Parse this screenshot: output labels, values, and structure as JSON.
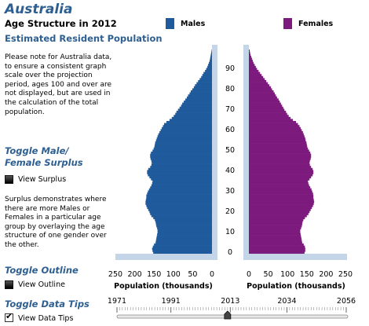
{
  "header": {
    "country": "Australia",
    "age_structure_label": "Age Structure in",
    "year": "2012",
    "subtitle": "Estimated Resident Population"
  },
  "notes": {
    "projection_note": "Please note for Australia data, to ensure a consistent graph scale over the projection period, ages 100 and over are not displayed, but are used in the calculation of the total population.",
    "surplus_note": "Surplus demonstrates where there are more Males or Females in a particular age group by overlaying the age structure of one gender over the other."
  },
  "toggles": {
    "surplus": {
      "title": "Toggle Male/ Female Surplus",
      "label": "View Surplus",
      "checked": false
    },
    "outline": {
      "title": "Toggle Outline",
      "label": "View Outline",
      "checked": false
    },
    "tips": {
      "title": "Toggle Data Tips",
      "label": "View Data Tips",
      "checked": true,
      "check_glyph": "✔"
    }
  },
  "timeline": {
    "labels": [
      "1971",
      "1991",
      "2013",
      "2034",
      "2056"
    ],
    "current_value": 2012
  },
  "colors": {
    "male": "#1f5a9c",
    "female": "#7d1a7d",
    "title": "#2d5f91",
    "axis_band": "#c5d5e8"
  },
  "chart_data": {
    "type": "bar",
    "orientation": "horizontal-population-pyramid",
    "legend": {
      "males": "Males",
      "females": "Females"
    },
    "xlabel": "Population (thousands)",
    "x_ticks_male": [
      "250",
      "200",
      "150",
      "100",
      "50",
      "0"
    ],
    "x_ticks_female": [
      "0",
      "50",
      "100",
      "150",
      "200",
      "250"
    ],
    "xlim": [
      0,
      250
    ],
    "age_ticks": [
      "0",
      "10",
      "20",
      "30",
      "40",
      "50",
      "60",
      "70",
      "80",
      "90"
    ],
    "age_range": [
      0,
      99
    ],
    "ages": [
      0,
      1,
      2,
      3,
      4,
      5,
      6,
      7,
      8,
      9,
      10,
      11,
      12,
      13,
      14,
      15,
      16,
      17,
      18,
      19,
      20,
      21,
      22,
      23,
      24,
      25,
      26,
      27,
      28,
      29,
      30,
      31,
      32,
      33,
      34,
      35,
      36,
      37,
      38,
      39,
      40,
      41,
      42,
      43,
      44,
      45,
      46,
      47,
      48,
      49,
      50,
      51,
      52,
      53,
      54,
      55,
      56,
      57,
      58,
      59,
      60,
      61,
      62,
      63,
      64,
      65,
      66,
      67,
      68,
      69,
      70,
      71,
      72,
      73,
      74,
      75,
      76,
      77,
      78,
      79,
      80,
      81,
      82,
      83,
      84,
      85,
      86,
      87,
      88,
      89,
      90,
      91,
      92,
      93,
      94,
      95,
      96,
      97,
      98,
      99
    ],
    "series": [
      {
        "name": "Males",
        "values": [
          152,
          154,
          155,
          153,
          150,
          146,
          145,
          144,
          143,
          142,
          141,
          141,
          142,
          144,
          145,
          146,
          148,
          152,
          157,
          160,
          162,
          165,
          168,
          170,
          172,
          172,
          171,
          170,
          170,
          168,
          166,
          163,
          160,
          157,
          155,
          154,
          158,
          162,
          166,
          168,
          168,
          165,
          160,
          157,
          156,
          157,
          159,
          160,
          160,
          158,
          154,
          151,
          149,
          148,
          147,
          145,
          143,
          141,
          139,
          136,
          133,
          130,
          127,
          124,
          118,
          110,
          104,
          99,
          95,
          92,
          88,
          84,
          80,
          77,
          73,
          69,
          65,
          62,
          58,
          55,
          51,
          47,
          44,
          40,
          36,
          32,
          28,
          25,
          22,
          18,
          15,
          12,
          10,
          8,
          6,
          5,
          4,
          3,
          2,
          1
        ]
      },
      {
        "name": "Females",
        "values": [
          144,
          146,
          146,
          145,
          142,
          138,
          137,
          136,
          135,
          134,
          133,
          133,
          135,
          137,
          138,
          139,
          141,
          145,
          150,
          154,
          157,
          160,
          163,
          166,
          168,
          169,
          168,
          167,
          167,
          166,
          164,
          162,
          159,
          156,
          154,
          153,
          157,
          161,
          165,
          167,
          167,
          165,
          161,
          158,
          157,
          158,
          160,
          161,
          161,
          159,
          156,
          153,
          151,
          150,
          149,
          147,
          146,
          144,
          142,
          140,
          137,
          134,
          131,
          127,
          122,
          114,
          108,
          103,
          99,
          96,
          92,
          89,
          86,
          83,
          80,
          77,
          73,
          70,
          67,
          64,
          60,
          57,
          53,
          49,
          45,
          41,
          37,
          33,
          29,
          25,
          21,
          18,
          15,
          12,
          10,
          8,
          6,
          4,
          3,
          2
        ]
      }
    ]
  }
}
